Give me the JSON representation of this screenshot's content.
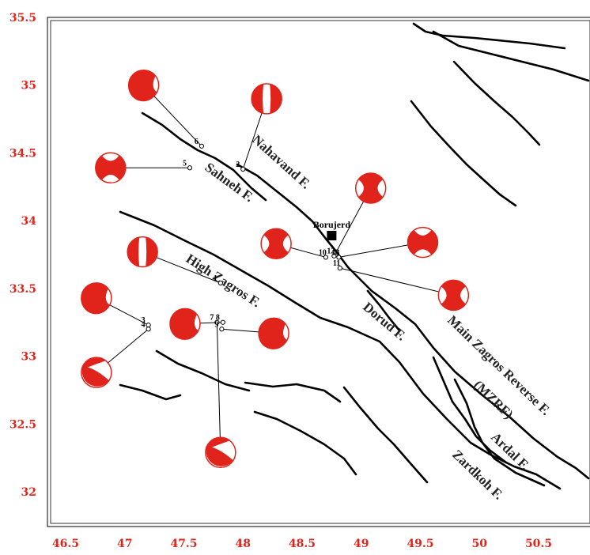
{
  "axes": {
    "x_ticks": [
      "46.5",
      "47",
      "47.5",
      "48",
      "48.5",
      "49",
      "49.5",
      "50",
      "50.5"
    ],
    "y_ticks": [
      "35.5",
      "35",
      "34.5",
      "34",
      "33.5",
      "33",
      "32.5",
      "32"
    ],
    "tick_color": "#e0241c"
  },
  "city": {
    "label": "Borujerd",
    "lon": 48.75,
    "lat": 33.89
  },
  "faults": [
    {
      "name": "nahavand",
      "label": "Nahavand F."
    },
    {
      "name": "sahneh",
      "label": "Sahneh F."
    },
    {
      "name": "high-zagros",
      "label": "High Zagros F."
    },
    {
      "name": "dorud",
      "label": "Dorud F."
    },
    {
      "name": "main-zagros",
      "label": "Main Zagros Reverse F."
    },
    {
      "name": "mzrf",
      "label": "(MZRF)"
    },
    {
      "name": "ardal",
      "label": "Ardal F."
    },
    {
      "name": "zardkoh",
      "label": "Zardkoh F."
    }
  ],
  "stations": [
    {
      "id": "1",
      "label": "1",
      "lon": 47.81,
      "lat": 33.54
    },
    {
      "id": "2",
      "label": "2",
      "lon": 48.0,
      "lat": 34.38
    },
    {
      "id": "3",
      "label": "3",
      "lon": 47.2,
      "lat": 33.23
    },
    {
      "id": "4",
      "label": "4",
      "lon": 47.2,
      "lat": 33.2
    },
    {
      "id": "5",
      "label": "5",
      "lon": 47.55,
      "lat": 34.39
    },
    {
      "id": "6",
      "label": "6",
      "lon": 47.65,
      "lat": 34.55
    },
    {
      "id": "7",
      "label": "7",
      "lon": 47.78,
      "lat": 33.25
    },
    {
      "id": "8",
      "label": "8",
      "lon": 47.83,
      "lat": 33.25
    },
    {
      "id": "9",
      "label": "9",
      "lon": 47.82,
      "lat": 33.2
    },
    {
      "id": "10",
      "label": "10",
      "lon": 48.7,
      "lat": 33.73
    },
    {
      "id": "11",
      "label": "11",
      "lon": 48.82,
      "lat": 33.65
    },
    {
      "id": "12",
      "label": "12",
      "lon": 48.77,
      "lat": 33.74
    },
    {
      "id": "13",
      "label": "13",
      "lon": 48.81,
      "lat": 33.73
    }
  ],
  "beachballs": [
    {
      "station": "6",
      "lon": 47.16,
      "lat": 35.0,
      "style": "dip-left"
    },
    {
      "station": "2",
      "lon": 48.2,
      "lat": 34.9,
      "style": "vertical"
    },
    {
      "station": "5",
      "lon": 46.88,
      "lat": 34.39,
      "style": "hourglass-h"
    },
    {
      "station": "10",
      "lon": 48.28,
      "lat": 33.83,
      "style": "hourglass-v"
    },
    {
      "station": "12",
      "lon": 49.08,
      "lat": 34.24,
      "style": "hourglass-v"
    },
    {
      "station": "13",
      "lon": 49.52,
      "lat": 33.84,
      "style": "hourglass-h"
    },
    {
      "station": "11",
      "lon": 49.78,
      "lat": 33.45,
      "style": "hourglass-v"
    },
    {
      "station": "1",
      "lon": 47.15,
      "lat": 33.77,
      "style": "vertical"
    },
    {
      "station": "3",
      "lon": 46.76,
      "lat": 33.43,
      "style": "dip-left"
    },
    {
      "station": "8",
      "lon": 47.51,
      "lat": 33.24,
      "style": "dip-left"
    },
    {
      "station": "9",
      "lon": 48.26,
      "lat": 33.17,
      "style": "dip-left"
    },
    {
      "station": "4",
      "lon": 46.76,
      "lat": 32.88,
      "style": "dip-right"
    },
    {
      "station": "7",
      "lon": 47.81,
      "lat": 32.29,
      "style": "dip-right"
    }
  ]
}
